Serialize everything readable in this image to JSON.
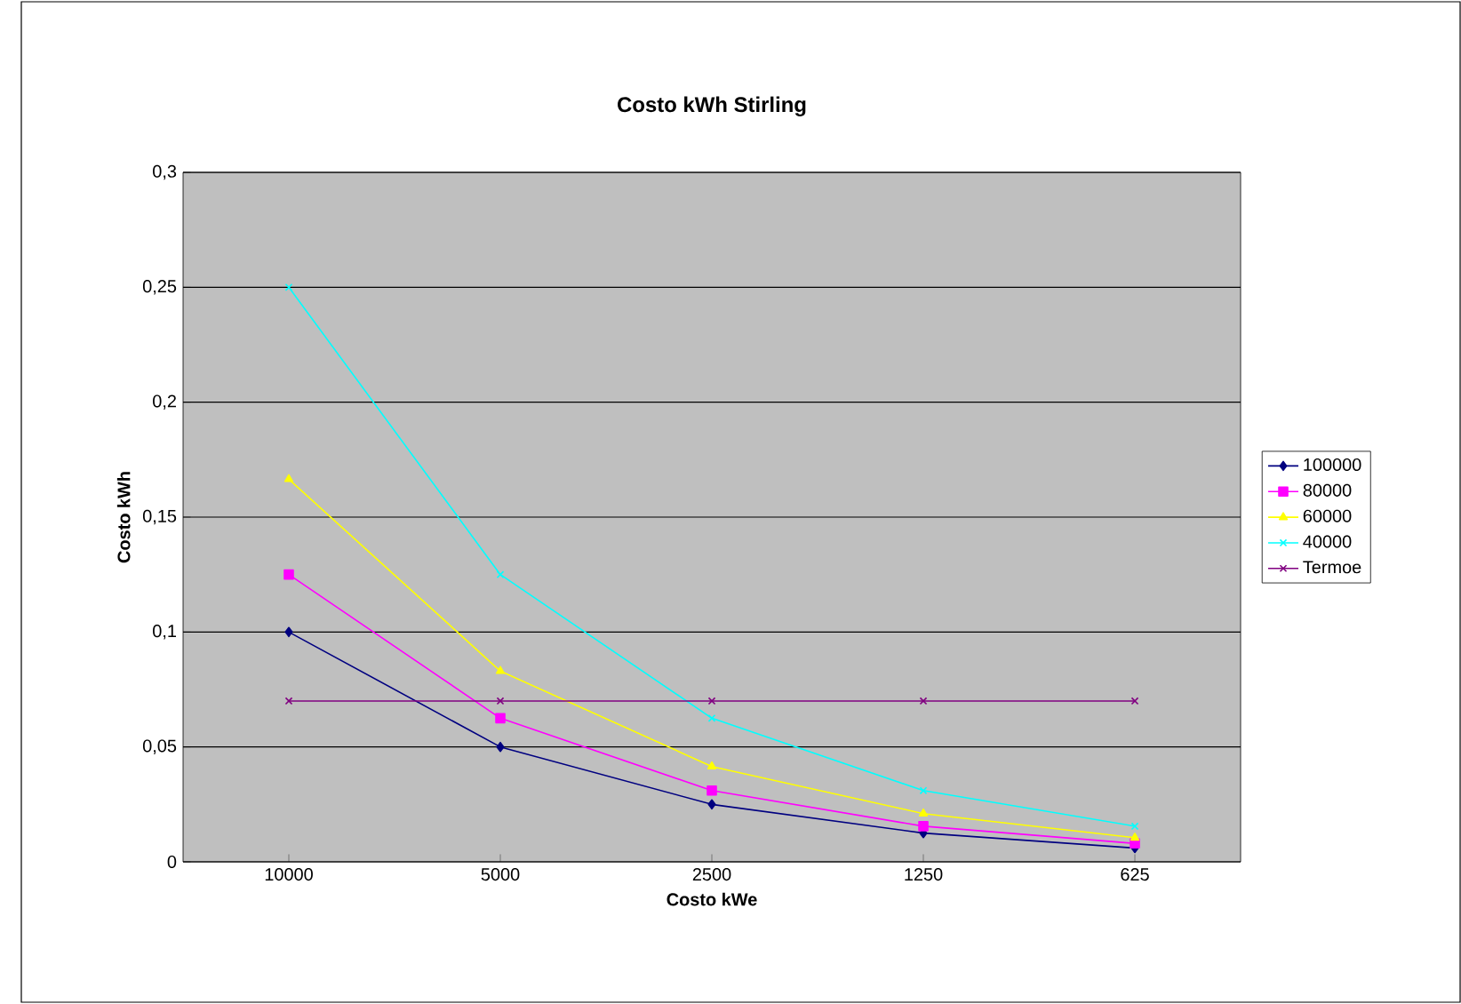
{
  "chart_data": {
    "type": "line",
    "title": "Costo kWh Stirling",
    "xlabel": "Costo kWe",
    "ylabel": "Costo kWh",
    "categories": [
      "10000",
      "5000",
      "2500",
      "1250",
      "625"
    ],
    "series": [
      {
        "name": "100000",
        "color": "#000080",
        "marker": "diamond",
        "values": [
          0.1,
          0.05,
          0.025,
          0.0125,
          0.006
        ]
      },
      {
        "name": "80000",
        "color": "#ff00ff",
        "marker": "square",
        "values": [
          0.125,
          0.0625,
          0.031,
          0.0155,
          0.008
        ]
      },
      {
        "name": "60000",
        "color": "#ffff00",
        "marker": "triangle",
        "values": [
          0.1665,
          0.083,
          0.0415,
          0.021,
          0.0105
        ]
      },
      {
        "name": "40000",
        "color": "#00ffff",
        "marker": "cross",
        "values": [
          0.25,
          0.125,
          0.0625,
          0.031,
          0.0155
        ]
      },
      {
        "name": "Termoe",
        "color": "#800080",
        "marker": "cross",
        "values": [
          0.07,
          0.07,
          0.07,
          0.07,
          0.07
        ]
      }
    ],
    "ylim": [
      0,
      0.3
    ],
    "yticks": [
      {
        "value": 0,
        "label": "0"
      },
      {
        "value": 0.05,
        "label": "0,05"
      },
      {
        "value": 0.1,
        "label": "0,1"
      },
      {
        "value": 0.15,
        "label": "0,15"
      },
      {
        "value": 0.2,
        "label": "0,2"
      },
      {
        "value": 0.25,
        "label": "0,25"
      },
      {
        "value": 0.3,
        "label": "0,3"
      }
    ],
    "grid": "y",
    "legend": "right"
  }
}
